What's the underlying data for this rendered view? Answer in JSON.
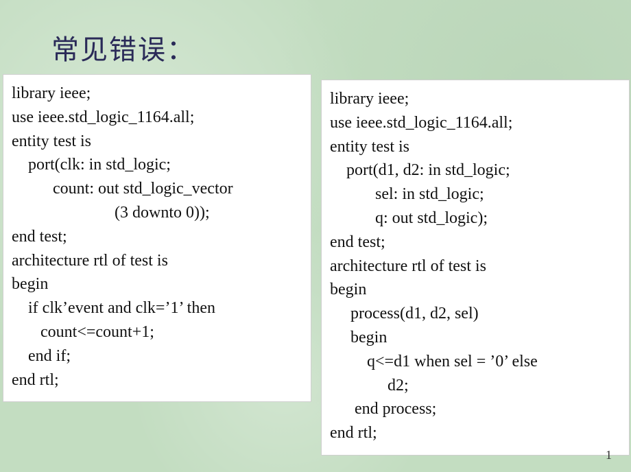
{
  "title": "常见错误：",
  "page_number": "1",
  "background_color": "#c3ddc1",
  "box_bg": "#ffffff",
  "box_border": "#cfcfcf",
  "text_color": "#111111",
  "title_color": "#2a2a58",
  "left_code": {
    "l0": "library ieee;",
    "l1": "use ieee.std_logic_1164.all;",
    "l2": "entity test is",
    "l3": "    port(clk: in std_logic;",
    "l4": "          count: out std_logic_vector",
    "l5": "                         (3 downto 0));",
    "l6": "end test;",
    "l7": "architecture rtl of test is",
    "l8": "begin",
    "l9": "    if clk’event and clk=’1’ then",
    "l10": "       count<=count+1;",
    "l11": "    end if;",
    "l12": "end rtl;"
  },
  "right_code": {
    "l0": "library ieee;",
    "l1": "use ieee.std_logic_1164.all;",
    "l2": "entity test is",
    "l3": "    port(d1, d2: in std_logic;",
    "l4": "           sel: in std_logic;",
    "l5": "           q: out std_logic);",
    "l6": "end test;",
    "l7": "architecture rtl of test is",
    "l8": "begin",
    "l9": "     process(d1, d2, sel)",
    "l10": "     begin",
    "l11": "         q<=d1 when sel = ’0’ else",
    "l12": "              d2;",
    "l13": "      end process;",
    "l14": "end rtl;"
  }
}
